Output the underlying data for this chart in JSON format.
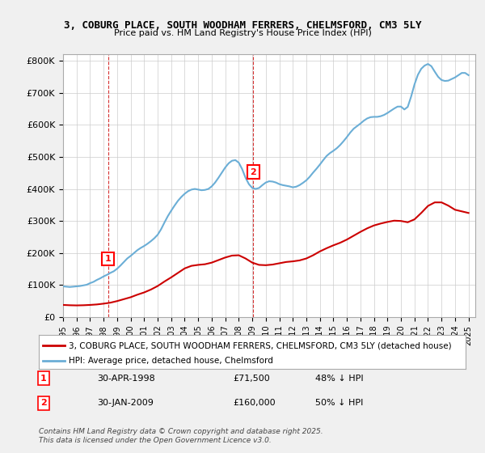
{
  "title1": "3, COBURG PLACE, SOUTH WOODHAM FERRERS, CHELMSFORD, CM3 5LY",
  "title2": "Price paid vs. HM Land Registry's House Price Index (HPI)",
  "legend_line1": "3, COBURG PLACE, SOUTH WOODHAM FERRERS, CHELMSFORD, CM3 5LY (detached house)",
  "legend_line2": "HPI: Average price, detached house, Chelmsford",
  "transaction1_label": "1",
  "transaction1_date": "30-APR-1998",
  "transaction1_price": "£71,500",
  "transaction1_hpi": "48% ↓ HPI",
  "transaction1_year": 1998.33,
  "transaction1_value": 71500,
  "transaction2_label": "2",
  "transaction2_date": "30-JAN-2009",
  "transaction2_price": "£160,000",
  "transaction2_hpi": "50% ↓ HPI",
  "transaction2_year": 2009.08,
  "transaction2_value": 160000,
  "footer": "Contains HM Land Registry data © Crown copyright and database right 2025.\nThis data is licensed under the Open Government Licence v3.0.",
  "hpi_color": "#6baed6",
  "price_color": "#cc0000",
  "vline_color": "#cc0000",
  "ylim": [
    0,
    820000
  ],
  "xlim_min": 1995.0,
  "xlim_max": 2025.5,
  "background_color": "#f0f0f0",
  "plot_bg_color": "#ffffff",
  "hpi_data_x": [
    1995.0,
    1995.25,
    1995.5,
    1995.75,
    1996.0,
    1996.25,
    1996.5,
    1996.75,
    1997.0,
    1997.25,
    1997.5,
    1997.75,
    1998.0,
    1998.25,
    1998.5,
    1998.75,
    1999.0,
    1999.25,
    1999.5,
    1999.75,
    2000.0,
    2000.25,
    2000.5,
    2000.75,
    2001.0,
    2001.25,
    2001.5,
    2001.75,
    2002.0,
    2002.25,
    2002.5,
    2002.75,
    2003.0,
    2003.25,
    2003.5,
    2003.75,
    2004.0,
    2004.25,
    2004.5,
    2004.75,
    2005.0,
    2005.25,
    2005.5,
    2005.75,
    2006.0,
    2006.25,
    2006.5,
    2006.75,
    2007.0,
    2007.25,
    2007.5,
    2007.75,
    2008.0,
    2008.25,
    2008.5,
    2008.75,
    2009.0,
    2009.25,
    2009.5,
    2009.75,
    2010.0,
    2010.25,
    2010.5,
    2010.75,
    2011.0,
    2011.25,
    2011.5,
    2011.75,
    2012.0,
    2012.25,
    2012.5,
    2012.75,
    2013.0,
    2013.25,
    2013.5,
    2013.75,
    2014.0,
    2014.25,
    2014.5,
    2014.75,
    2015.0,
    2015.25,
    2015.5,
    2015.75,
    2016.0,
    2016.25,
    2016.5,
    2016.75,
    2017.0,
    2017.25,
    2017.5,
    2017.75,
    2018.0,
    2018.25,
    2018.5,
    2018.75,
    2019.0,
    2019.25,
    2019.5,
    2019.75,
    2020.0,
    2020.25,
    2020.5,
    2020.75,
    2021.0,
    2021.25,
    2021.5,
    2021.75,
    2022.0,
    2022.25,
    2022.5,
    2022.75,
    2023.0,
    2023.25,
    2023.5,
    2023.75,
    2024.0,
    2024.25,
    2024.5,
    2024.75,
    2025.0
  ],
  "hpi_data_y": [
    96000,
    95000,
    94000,
    95000,
    96000,
    97000,
    99000,
    101000,
    106000,
    110000,
    116000,
    121000,
    127000,
    132000,
    138000,
    143000,
    151000,
    161000,
    172000,
    183000,
    191000,
    200000,
    209000,
    216000,
    222000,
    229000,
    237000,
    246000,
    257000,
    274000,
    295000,
    315000,
    332000,
    348000,
    363000,
    375000,
    385000,
    393000,
    398000,
    400000,
    398000,
    396000,
    397000,
    400000,
    408000,
    420000,
    435000,
    451000,
    467000,
    480000,
    488000,
    490000,
    482000,
    462000,
    435000,
    415000,
    403000,
    400000,
    403000,
    412000,
    420000,
    424000,
    423000,
    420000,
    415000,
    412000,
    410000,
    408000,
    405000,
    407000,
    412000,
    419000,
    427000,
    438000,
    451000,
    463000,
    476000,
    490000,
    503000,
    512000,
    519000,
    527000,
    537000,
    549000,
    562000,
    576000,
    588000,
    596000,
    604000,
    613000,
    620000,
    624000,
    625000,
    625000,
    627000,
    631000,
    637000,
    644000,
    651000,
    657000,
    657000,
    648000,
    656000,
    688000,
    726000,
    756000,
    775000,
    785000,
    790000,
    783000,
    766000,
    750000,
    740000,
    737000,
    738000,
    743000,
    748000,
    755000,
    762000,
    762000,
    755000
  ],
  "price_data_x": [
    1995.0,
    1995.5,
    1996.0,
    1996.5,
    1997.0,
    1997.5,
    1998.0,
    1998.5,
    1999.0,
    1999.5,
    2000.0,
    2000.5,
    2001.0,
    2001.5,
    2002.0,
    2002.5,
    2003.0,
    2003.5,
    2004.0,
    2004.5,
    2005.0,
    2005.5,
    2006.0,
    2006.5,
    2007.0,
    2007.5,
    2008.0,
    2008.5,
    2009.0,
    2009.5,
    2010.0,
    2010.5,
    2011.0,
    2011.5,
    2012.0,
    2012.5,
    2013.0,
    2013.5,
    2014.0,
    2014.5,
    2015.0,
    2015.5,
    2016.0,
    2016.5,
    2017.0,
    2017.5,
    2018.0,
    2018.5,
    2019.0,
    2019.5,
    2020.0,
    2020.5,
    2021.0,
    2021.5,
    2022.0,
    2022.5,
    2023.0,
    2023.5,
    2024.0,
    2024.5,
    2025.0
  ],
  "price_data_y": [
    38000,
    37000,
    36500,
    37000,
    38000,
    39500,
    42000,
    45000,
    50000,
    56000,
    62000,
    70000,
    77000,
    86000,
    97000,
    111000,
    124000,
    138000,
    152000,
    160000,
    163000,
    165000,
    170000,
    178000,
    186000,
    192000,
    193000,
    183000,
    170000,
    163000,
    162000,
    164000,
    168000,
    172000,
    174000,
    177000,
    183000,
    193000,
    205000,
    215000,
    224000,
    232000,
    242000,
    254000,
    266000,
    277000,
    286000,
    292000,
    297000,
    301000,
    300000,
    296000,
    305000,
    325000,
    347000,
    358000,
    358000,
    348000,
    335000,
    330000,
    325000
  ]
}
